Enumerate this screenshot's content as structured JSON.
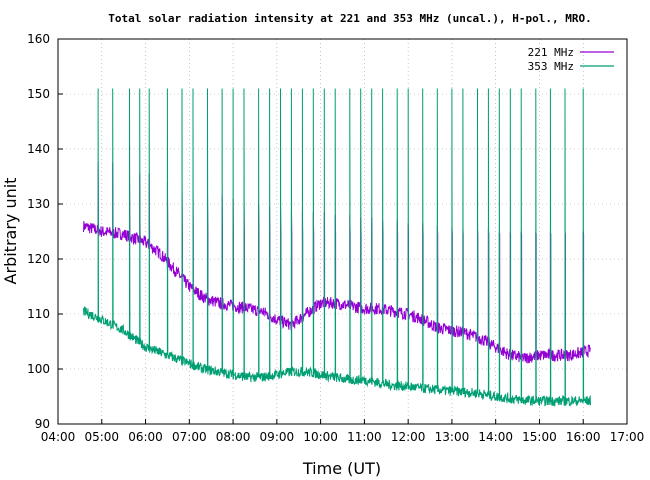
{
  "chart_data": {
    "type": "line",
    "title": "Total solar radiation intensity at 221 and 353 MHz (uncal.), H-pol., MRO.",
    "xlabel": "Time (UT)",
    "ylabel": "Arbitrary unit",
    "xlim": [
      "04:00",
      "17:00"
    ],
    "ylim": [
      90,
      160
    ],
    "x_ticks": [
      "04:00",
      "05:00",
      "06:00",
      "07:00",
      "08:00",
      "09:00",
      "10:00",
      "11:00",
      "12:00",
      "13:00",
      "14:00",
      "15:00",
      "16:00",
      "17:00"
    ],
    "y_ticks": [
      90,
      100,
      110,
      120,
      130,
      140,
      150,
      160
    ],
    "grid": true,
    "legend_position": "top-right",
    "series": [
      {
        "name": "221 MHz",
        "color": "#9400d3",
        "x": [
          "04:35",
          "05:00",
          "05:30",
          "06:00",
          "06:20",
          "06:40",
          "07:00",
          "07:20",
          "07:40",
          "08:00",
          "08:20",
          "08:40",
          "09:00",
          "09:20",
          "09:40",
          "10:00",
          "10:20",
          "10:40",
          "11:00",
          "11:20",
          "11:40",
          "12:00",
          "12:20",
          "12:40",
          "13:00",
          "13:20",
          "13:40",
          "14:00",
          "14:20",
          "14:40",
          "15:00",
          "15:20",
          "15:40",
          "16:00",
          "16:10"
        ],
        "values": [
          126,
          125,
          124.5,
          123,
          121,
          118,
          115,
          113,
          112,
          111.5,
          111,
          110.5,
          109,
          108,
          110,
          112,
          112,
          111.5,
          111,
          111,
          110.5,
          110,
          109,
          107.5,
          107,
          106.5,
          105.5,
          104,
          102.5,
          102,
          102.5,
          102.5,
          102.5,
          103,
          103.5
        ],
        "spike_peaks": [
          137.5,
          137.5,
          136,
          135.5,
          135.5,
          134,
          133,
          132.5,
          132,
          131.5,
          131,
          130.5,
          130,
          129.5,
          129.5,
          129,
          129,
          128.5,
          128.5,
          128,
          128,
          127.5,
          127.5,
          127,
          127,
          126.5,
          126.5,
          126,
          126,
          125.5,
          125.5,
          125.5,
          125,
          125,
          125,
          125,
          125,
          125,
          125
        ],
        "spike_floor": 124.5
      },
      {
        "name": "353 MHz",
        "color": "#009e73",
        "x": [
          "04:35",
          "05:00",
          "05:30",
          "06:00",
          "06:20",
          "06:40",
          "07:00",
          "07:20",
          "07:40",
          "08:00",
          "08:20",
          "08:40",
          "09:00",
          "09:20",
          "09:40",
          "10:00",
          "10:20",
          "10:40",
          "11:00",
          "11:20",
          "11:40",
          "12:00",
          "12:20",
          "12:40",
          "13:00",
          "13:20",
          "13:40",
          "14:00",
          "14:20",
          "14:40",
          "15:00",
          "15:20",
          "15:40",
          "16:00",
          "16:10"
        ],
        "values": [
          110.5,
          109,
          107,
          104,
          103,
          102,
          101,
          100,
          99.5,
          99,
          98.5,
          98.5,
          99,
          99.5,
          99.5,
          99,
          98.5,
          98,
          98,
          97.5,
          97,
          96.8,
          96.5,
          96.2,
          96,
          95.8,
          95.5,
          95,
          94.6,
          94.3,
          94.2,
          94.2,
          94.2,
          94.2,
          94.2
        ],
        "spike_times": [
          "04:55",
          "05:15",
          "05:38",
          "05:52",
          "06:05",
          "06:30",
          "06:50",
          "07:05",
          "07:25",
          "07:45",
          "08:00",
          "08:15",
          "08:35",
          "08:50",
          "09:05",
          "09:20",
          "09:35",
          "09:50",
          "10:05",
          "10:20",
          "10:40",
          "10:55",
          "11:10",
          "11:25",
          "11:45",
          "12:00",
          "12:20",
          "12:40",
          "13:00",
          "13:15",
          "13:35",
          "13:50",
          "14:05",
          "14:20",
          "14:35",
          "14:55",
          "15:15",
          "15:35",
          "16:00"
        ],
        "spike_peak": 151
      }
    ]
  }
}
